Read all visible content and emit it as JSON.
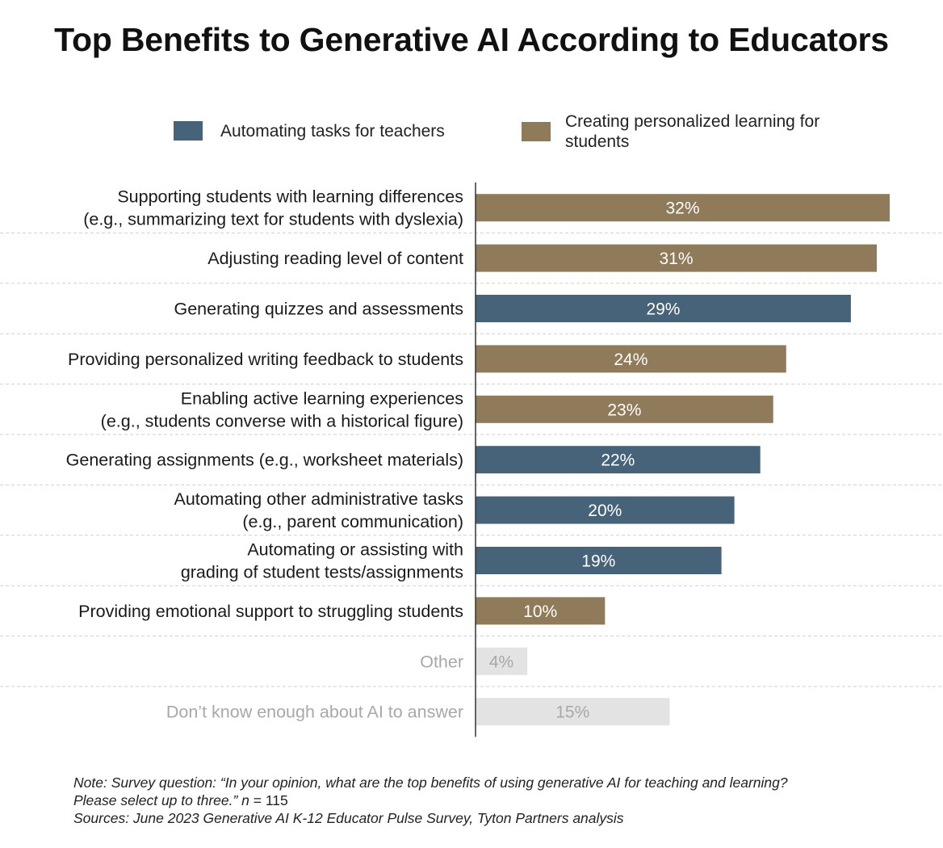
{
  "chart_data": {
    "type": "bar",
    "orientation": "horizontal",
    "title": "Top Benefits to Generative AI According to Educators",
    "legend": [
      {
        "key": "teachers",
        "label": "Automating tasks for teachers",
        "color": "#476379"
      },
      {
        "key": "students",
        "label": "Creating personalized learning for students",
        "color": "#8f7a5a"
      }
    ],
    "neutral_color": "#e3e3e3",
    "neutral_text_color": "#a8a8a8",
    "categories": [
      {
        "label": "Supporting students with learning differences (e.g., summarizing text for students with dyslexia)",
        "lines": [
          "Supporting students with learning differences",
          "(e.g., summarizing text for students with dyslexia)"
        ],
        "value": 32,
        "display": "32%",
        "group": "students"
      },
      {
        "label": "Adjusting reading level of content",
        "lines": [
          "Adjusting reading level of content"
        ],
        "value": 31,
        "display": "31%",
        "group": "students"
      },
      {
        "label": "Generating quizzes and assessments",
        "lines": [
          "Generating quizzes and assessments"
        ],
        "value": 29,
        "display": "29%",
        "group": "teachers"
      },
      {
        "label": "Providing personalized writing feedback to students",
        "lines": [
          "Providing personalized writing feedback to students"
        ],
        "value": 24,
        "display": "24%",
        "group": "students"
      },
      {
        "label": "Enabling active learning experiences (e.g., students converse with a historical figure)",
        "lines": [
          "Enabling active learning experiences",
          "(e.g., students converse with a historical figure)"
        ],
        "value": 23,
        "display": "23%",
        "group": "students"
      },
      {
        "label": "Generating assignments (e.g., worksheet materials)",
        "lines": [
          "Generating assignments (e.g., worksheet materials)"
        ],
        "value": 22,
        "display": "22%",
        "group": "teachers"
      },
      {
        "label": "Automating other administrative tasks (e.g., parent communication)",
        "lines": [
          "Automating other administrative tasks",
          "(e.g., parent communication)"
        ],
        "value": 20,
        "display": "20%",
        "group": "teachers"
      },
      {
        "label": "Automating or assisting with grading of student tests/assignments",
        "lines": [
          "Automating or assisting with",
          "grading of student tests/assignments"
        ],
        "value": 19,
        "display": "19%",
        "group": "teachers"
      },
      {
        "label": "Providing emotional support to struggling students",
        "lines": [
          "Providing emotional support to struggling students"
        ],
        "value": 10,
        "display": "10%",
        "group": "students"
      },
      {
        "label": "Other",
        "lines": [
          "Other"
        ],
        "value": 4,
        "display": "4%",
        "group": "neutral"
      },
      {
        "label": "Don’t know enough about AI to answer",
        "lines": [
          "Don’t know enough about AI to answer"
        ],
        "value": 15,
        "display": "15%",
        "group": "neutral"
      }
    ],
    "xlim": [
      0,
      32
    ],
    "unit": "%"
  },
  "footnote": {
    "line1": "Note: Survey question: “In your opinion, what are the top benefits of using generative AI for teaching and learning?",
    "line2_main": "Please select up to three.” ",
    "line2_n": "n",
    "line2_rest": " = 115",
    "line3": "Sources: June 2023 Generative AI K-12  Educator Pulse Survey, Tyton Partners analysis"
  }
}
